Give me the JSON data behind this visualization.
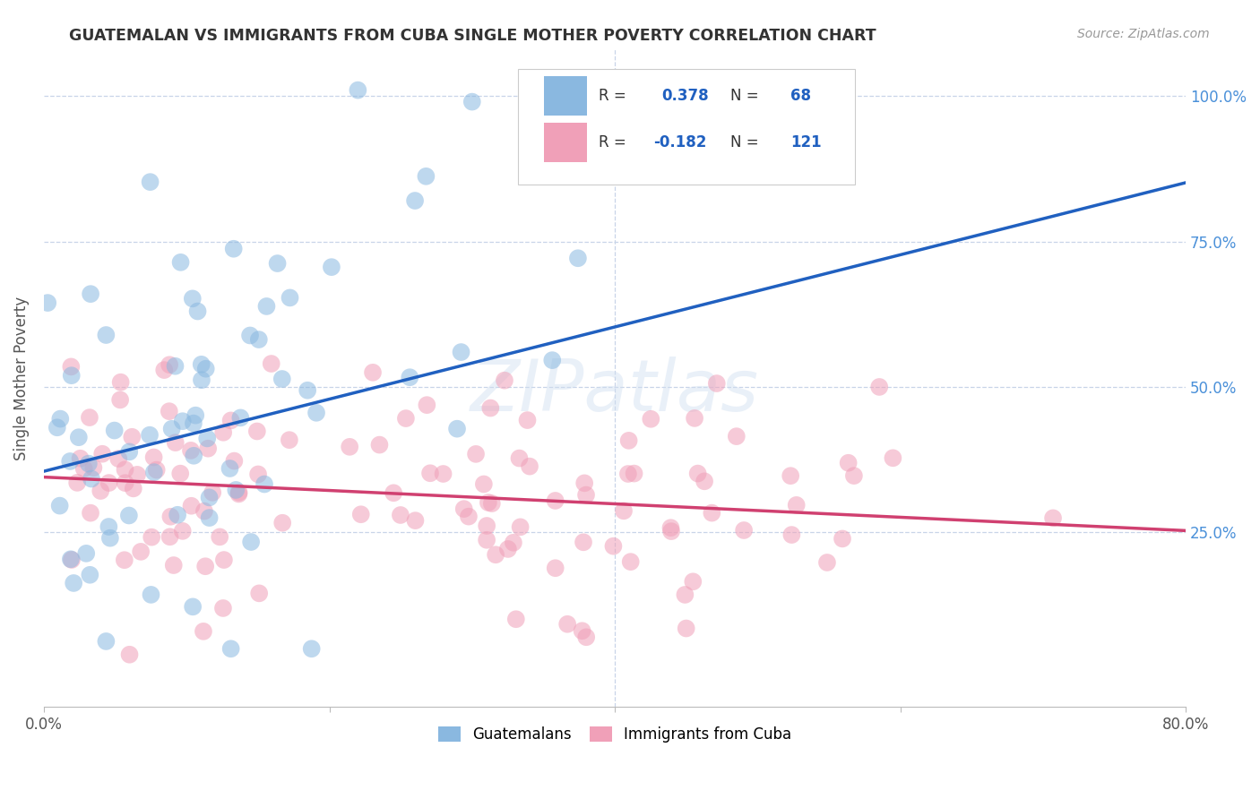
{
  "title": "GUATEMALAN VS IMMIGRANTS FROM CUBA SINGLE MOTHER POVERTY CORRELATION CHART",
  "source": "Source: ZipAtlas.com",
  "ylabel": "Single Mother Poverty",
  "xlim": [
    0.0,
    0.8
  ],
  "ylim": [
    -0.05,
    1.08
  ],
  "blue_R": 0.378,
  "blue_N": 68,
  "pink_R": -0.182,
  "pink_N": 121,
  "blue_color": "#8ab8e0",
  "pink_color": "#f0a0b8",
  "blue_line_color": "#2060c0",
  "pink_line_color": "#d04070",
  "legend_label_blue": "Guatemalans",
  "legend_label_pink": "Immigrants from Cuba",
  "watermark": "ZIPatlas",
  "background_color": "#ffffff",
  "grid_color": "#c8d4e8",
  "title_color": "#333333",
  "right_ytick_color": "#4a90d9",
  "blue_intercept": 0.355,
  "blue_slope": 0.62,
  "pink_intercept": 0.345,
  "pink_slope": -0.115
}
